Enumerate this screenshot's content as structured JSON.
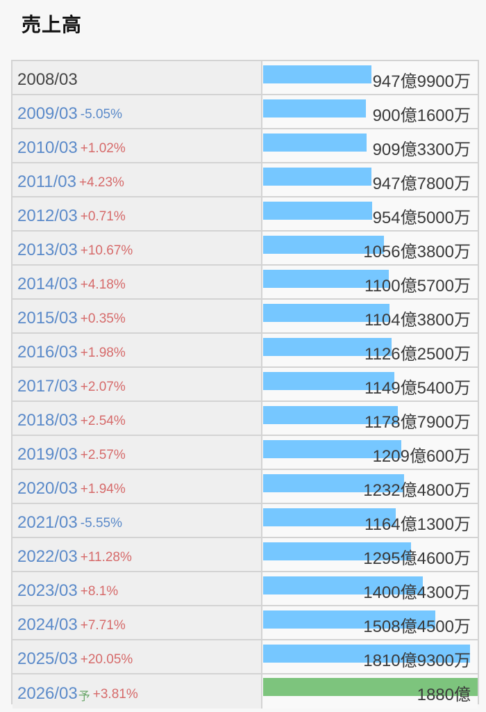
{
  "page": {
    "title": "売上高"
  },
  "colors": {
    "bar": "#76c7ff",
    "forecast_bar": "#7dc47d",
    "negative": "#5b8ac9",
    "positive": "#d66a6a"
  },
  "chart_data": {
    "type": "bar",
    "orientation": "horizontal",
    "title": "売上高",
    "unit": "億円",
    "max_value": 1880,
    "rows": [
      {
        "year": "2008/03",
        "change": "",
        "value_label": "947億9900万",
        "value": 947.99
      },
      {
        "year": "2009/03",
        "change": "-5.05%",
        "value_label": "900億1600万",
        "value": 900.16
      },
      {
        "year": "2010/03",
        "change": "+1.02%",
        "value_label": "909億3300万",
        "value": 909.33
      },
      {
        "year": "2011/03",
        "change": "+4.23%",
        "value_label": "947億7800万",
        "value": 947.78
      },
      {
        "year": "2012/03",
        "change": "+0.71%",
        "value_label": "954億5000万",
        "value": 954.5
      },
      {
        "year": "2013/03",
        "change": "+10.67%",
        "value_label": "1056億3800万",
        "value": 1056.38
      },
      {
        "year": "2014/03",
        "change": "+4.18%",
        "value_label": "1100億5700万",
        "value": 1100.57
      },
      {
        "year": "2015/03",
        "change": "+0.35%",
        "value_label": "1104億3800万",
        "value": 1104.38
      },
      {
        "year": "2016/03",
        "change": "+1.98%",
        "value_label": "1126億2500万",
        "value": 1126.25
      },
      {
        "year": "2017/03",
        "change": "+2.07%",
        "value_label": "1149億5400万",
        "value": 1149.54
      },
      {
        "year": "2018/03",
        "change": "+2.54%",
        "value_label": "1178億7900万",
        "value": 1178.79
      },
      {
        "year": "2019/03",
        "change": "+2.57%",
        "value_label": "1209億600万",
        "value": 1209.06
      },
      {
        "year": "2020/03",
        "change": "+1.94%",
        "value_label": "1232億4800万",
        "value": 1232.48
      },
      {
        "year": "2021/03",
        "change": "-5.55%",
        "value_label": "1164億1300万",
        "value": 1164.13
      },
      {
        "year": "2022/03",
        "change": "+11.28%",
        "value_label": "1295億4600万",
        "value": 1295.46
      },
      {
        "year": "2023/03",
        "change": "+8.1%",
        "value_label": "1400億4300万",
        "value": 1400.43
      },
      {
        "year": "2024/03",
        "change": "+7.71%",
        "value_label": "1508億4500万",
        "value": 1508.45
      },
      {
        "year": "2025/03",
        "change": "+20.05%",
        "value_label": "1810億9300万",
        "value": 1810.93
      },
      {
        "year": "2026/03",
        "forecast_label": "予",
        "change": "+3.81%",
        "value_label": "1880億",
        "value": 1880.0,
        "forecast": true
      }
    ]
  }
}
